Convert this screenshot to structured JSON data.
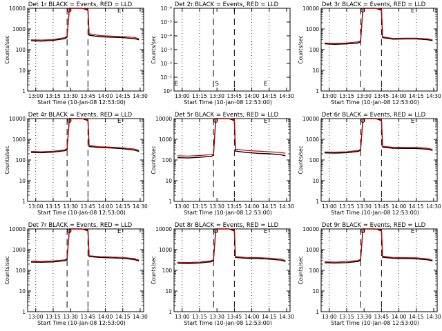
{
  "chart_data": [
    {
      "type": "line",
      "title": "Det 1r BLACK = Events, RED = LLD",
      "xlabel": "Start Time (10-Jan-08 12:53:00)",
      "ylabel": "Counts/sec",
      "x_ticks": [
        "13:00",
        "13:15",
        "13:30",
        "13:45",
        "14:00",
        "14:15",
        "14:30"
      ],
      "y_ticks": [
        "1",
        "10",
        "100",
        "1000",
        "10000"
      ],
      "ylim": [
        1,
        10000
      ],
      "yscale": "log",
      "markers": [
        "O",
        "E"
      ],
      "series": [
        {
          "name": "Events",
          "color": "#000000",
          "x": [
            "12:56",
            "13:05",
            "13:15",
            "13:25",
            "13:27",
            "13:29",
            "13:35",
            "13:40",
            "13:45",
            "13:46",
            "13:55",
            "14:05",
            "14:15",
            "14:25",
            "14:29"
          ],
          "y": [
            270,
            260,
            280,
            340,
            400,
            10000,
            10000,
            10000,
            8000,
            500,
            420,
            400,
            380,
            340,
            300
          ]
        },
        {
          "name": "LLD",
          "color": "#cc0000",
          "x": [
            "12:56",
            "13:05",
            "13:15",
            "13:25",
            "13:27",
            "13:29",
            "13:35",
            "13:40",
            "13:45",
            "13:46",
            "13:55",
            "14:05",
            "14:15",
            "14:25",
            "14:29"
          ],
          "y": [
            300,
            290,
            310,
            380,
            450,
            10000,
            10000,
            10000,
            9000,
            600,
            480,
            450,
            430,
            390,
            340
          ]
        }
      ]
    },
    {
      "type": "line",
      "title": "Det 2r BLACK = Events, RED = LLD",
      "xlabel": "Start Time (10-Jan-08 12:53:00)",
      "ylabel": "Counts/sec",
      "x_ticks": [
        "13:00",
        "13:15",
        "13:30",
        "13:45",
        "14:00",
        "14:15",
        "14:30"
      ],
      "y_ticks": [
        "10⁰",
        "10⁻¹",
        "10⁻²",
        "10⁻³",
        "10⁻⁴",
        "10⁻⁵",
        "10⁻⁶"
      ],
      "markers": [
        "E",
        "S",
        "E"
      ],
      "series": []
    },
    {
      "type": "line",
      "title": "Det 3r BLACK = Events, RED = LLD",
      "xlabel": "Start Time (10-Jan-08 12:53:00)",
      "ylabel": "Counts/sec",
      "x_ticks": [
        "13:00",
        "13:15",
        "13:30",
        "13:45",
        "14:00",
        "14:15",
        "14:30"
      ],
      "y_ticks": [
        "1",
        "10",
        "100",
        "1000",
        "10000"
      ],
      "ylim": [
        1,
        10000
      ],
      "yscale": "log",
      "markers": [
        "O",
        "E"
      ],
      "series": [
        {
          "name": "Events",
          "color": "#000000",
          "x": [
            "12:56",
            "13:05",
            "13:15",
            "13:25",
            "13:27",
            "13:29",
            "13:35",
            "13:40",
            "13:45",
            "13:46",
            "13:55",
            "14:05",
            "14:15",
            "14:25",
            "14:29"
          ],
          "y": [
            190,
            180,
            190,
            210,
            240,
            10000,
            10000,
            10000,
            8000,
            380,
            320,
            330,
            330,
            300,
            270
          ]
        },
        {
          "name": "LLD",
          "color": "#cc0000",
          "x": [
            "12:56",
            "13:05",
            "13:15",
            "13:25",
            "13:27",
            "13:29",
            "13:35",
            "13:40",
            "13:45",
            "13:46",
            "13:55",
            "14:05",
            "14:15",
            "14:25",
            "14:29"
          ],
          "y": [
            210,
            200,
            210,
            240,
            270,
            10000,
            10000,
            10000,
            9000,
            420,
            350,
            360,
            360,
            330,
            300
          ]
        }
      ]
    },
    {
      "type": "line",
      "title": "Det 4r BLACK = Events, RED = LLD",
      "xlabel": "Start Time (10-Jan-08 12:53:00)",
      "ylabel": "Counts/sec",
      "x_ticks": [
        "13:00",
        "13:15",
        "13:30",
        "13:45",
        "14:00",
        "14:15",
        "14:30"
      ],
      "y_ticks": [
        "1",
        "10",
        "100",
        "1000",
        "10000"
      ],
      "ylim": [
        1,
        10000
      ],
      "yscale": "log",
      "markers": [
        "O",
        "E"
      ],
      "series": [
        {
          "name": "Events",
          "color": "#000000",
          "x": [
            "12:56",
            "13:05",
            "13:15",
            "13:25",
            "13:27",
            "13:29",
            "13:35",
            "13:40",
            "13:45",
            "13:46",
            "13:55",
            "14:05",
            "14:15",
            "14:25",
            "14:29"
          ],
          "y": [
            230,
            225,
            240,
            280,
            320,
            10000,
            10000,
            10000,
            8000,
            450,
            400,
            380,
            350,
            300,
            260
          ]
        },
        {
          "name": "LLD",
          "color": "#cc0000",
          "x": [
            "12:56",
            "13:05",
            "13:15",
            "13:25",
            "13:27",
            "13:29",
            "13:35",
            "13:40",
            "13:45",
            "13:46",
            "13:55",
            "14:05",
            "14:15",
            "14:25",
            "14:29"
          ],
          "y": [
            260,
            250,
            265,
            310,
            360,
            10000,
            10000,
            10000,
            9000,
            500,
            440,
            420,
            390,
            340,
            290
          ]
        }
      ]
    },
    {
      "type": "line",
      "title": "Det 5r BLACK = Events, RED = LLD",
      "xlabel": "Start Time (10-Jan-08 12:53:00)",
      "ylabel": "Counts/sec",
      "x_ticks": [
        "13:00",
        "13:15",
        "13:30",
        "13:45",
        "14:00",
        "14:15",
        "14:30"
      ],
      "y_ticks": [
        "1",
        "10",
        "100",
        "1000",
        "10000"
      ],
      "ylim": [
        1,
        10000
      ],
      "yscale": "log",
      "markers": [
        "O",
        "E"
      ],
      "series": [
        {
          "name": "Events",
          "color": "#000000",
          "x": [
            "12:56",
            "13:05",
            "13:15",
            "13:25",
            "13:27",
            "13:29",
            "13:35",
            "13:40",
            "13:45",
            "13:46",
            "13:55",
            "14:05",
            "14:15",
            "14:25",
            "14:29"
          ],
          "y": [
            130,
            125,
            135,
            150,
            170,
            10000,
            10000,
            10000,
            8000,
            270,
            230,
            210,
            200,
            180,
            160
          ]
        },
        {
          "name": "LLD",
          "color": "#cc0000",
          "x": [
            "12:56",
            "13:05",
            "13:15",
            "13:25",
            "13:27",
            "13:29",
            "13:35",
            "13:40",
            "13:45",
            "13:46",
            "13:55",
            "14:05",
            "14:15",
            "14:25",
            "14:29"
          ],
          "y": [
            160,
            155,
            165,
            180,
            200,
            10000,
            10000,
            10000,
            9000,
            330,
            290,
            270,
            250,
            230,
            210
          ]
        }
      ]
    },
    {
      "type": "line",
      "title": "Det 6r BLACK = Events, RED = LLD",
      "xlabel": "Start Time (10-Jan-08 12:53:00)",
      "ylabel": "Counts/sec",
      "x_ticks": [
        "13:00",
        "13:15",
        "13:30",
        "13:45",
        "14:00",
        "14:15",
        "14:30"
      ],
      "y_ticks": [
        "1",
        "10",
        "100",
        "1000",
        "10000"
      ],
      "ylim": [
        1,
        10000
      ],
      "yscale": "log",
      "markers": [
        "O",
        "E"
      ],
      "series": [
        {
          "name": "Events",
          "color": "#000000",
          "x": [
            "12:56",
            "13:05",
            "13:15",
            "13:25",
            "13:27",
            "13:29",
            "13:35",
            "13:40",
            "13:45",
            "13:46",
            "13:55",
            "14:05",
            "14:15",
            "14:25",
            "14:29"
          ],
          "y": [
            220,
            215,
            225,
            260,
            300,
            10000,
            10000,
            10000,
            8000,
            420,
            370,
            360,
            360,
            330,
            290
          ]
        },
        {
          "name": "LLD",
          "color": "#cc0000",
          "x": [
            "12:56",
            "13:05",
            "13:15",
            "13:25",
            "13:27",
            "13:29",
            "13:35",
            "13:40",
            "13:45",
            "13:46",
            "13:55",
            "14:05",
            "14:15",
            "14:25",
            "14:29"
          ],
          "y": [
            245,
            240,
            250,
            290,
            330,
            10000,
            10000,
            10000,
            9000,
            460,
            410,
            400,
            400,
            370,
            320
          ]
        }
      ]
    },
    {
      "type": "line",
      "title": "Det 7r BLACK = Events, RED = LLD",
      "xlabel": "Start Time (10-Jan-08 12:53:00)",
      "ylabel": "Counts/sec",
      "x_ticks": [
        "13:00",
        "13:15",
        "13:30",
        "13:45",
        "14:00",
        "14:15",
        "14:30"
      ],
      "y_ticks": [
        "1",
        "10",
        "100",
        "1000",
        "10000"
      ],
      "ylim": [
        1,
        10000
      ],
      "yscale": "log",
      "markers": [
        "O",
        "E"
      ],
      "series": [
        {
          "name": "Events",
          "color": "#000000",
          "x": [
            "12:56",
            "13:05",
            "13:15",
            "13:25",
            "13:27",
            "13:29",
            "13:35",
            "13:40",
            "13:45",
            "13:46",
            "13:55",
            "14:05",
            "14:15",
            "14:25",
            "14:29"
          ],
          "y": [
            250,
            245,
            255,
            290,
            330,
            10000,
            10000,
            10000,
            8000,
            460,
            420,
            400,
            380,
            330,
            280
          ]
        },
        {
          "name": "LLD",
          "color": "#cc0000",
          "x": [
            "12:56",
            "13:05",
            "13:15",
            "13:25",
            "13:27",
            "13:29",
            "13:35",
            "13:40",
            "13:45",
            "13:46",
            "13:55",
            "14:05",
            "14:15",
            "14:25",
            "14:29"
          ],
          "y": [
            280,
            270,
            285,
            320,
            370,
            10000,
            10000,
            10000,
            9000,
            510,
            460,
            440,
            420,
            370,
            310
          ]
        }
      ]
    },
    {
      "type": "line",
      "title": "Det 8r BLACK = Events, RED = LLD",
      "xlabel": "Start Time (10-Jan-08 12:53:00)",
      "ylabel": "Counts/sec",
      "x_ticks": [
        "13:00",
        "13:15",
        "13:30",
        "13:45",
        "14:00",
        "14:15",
        "14:30"
      ],
      "y_ticks": [
        "1",
        "10",
        "100",
        "1000",
        "10000"
      ],
      "ylim": [
        1,
        10000
      ],
      "yscale": "log",
      "markers": [
        "O",
        "E"
      ],
      "series": [
        {
          "name": "Events",
          "color": "#000000",
          "x": [
            "12:56",
            "13:05",
            "13:15",
            "13:25",
            "13:27",
            "13:29",
            "13:35",
            "13:40",
            "13:45",
            "13:46",
            "13:55",
            "14:05",
            "14:15",
            "14:25",
            "14:29"
          ],
          "y": [
            220,
            215,
            225,
            260,
            300,
            10000,
            10000,
            10000,
            8000,
            420,
            380,
            370,
            350,
            310,
            270
          ]
        },
        {
          "name": "LLD",
          "color": "#cc0000",
          "x": [
            "12:56",
            "13:05",
            "13:15",
            "13:25",
            "13:27",
            "13:29",
            "13:35",
            "13:40",
            "13:45",
            "13:46",
            "13:55",
            "14:05",
            "14:15",
            "14:25",
            "14:29"
          ],
          "y": [
            245,
            240,
            250,
            290,
            330,
            10000,
            10000,
            10000,
            9000,
            460,
            420,
            410,
            390,
            350,
            300
          ]
        }
      ]
    },
    {
      "type": "line",
      "title": "Det 9r BLACK = Events, RED = LLD",
      "xlabel": "Start Time (10-Jan-08 12:53:00)",
      "ylabel": "Counts/sec",
      "x_ticks": [
        "13:00",
        "13:15",
        "13:30",
        "13:45",
        "14:00",
        "14:15",
        "14:30"
      ],
      "y_ticks": [
        "1",
        "10",
        "100",
        "1000",
        "10000"
      ],
      "ylim": [
        1,
        10000
      ],
      "yscale": "log",
      "markers": [
        "O",
        "E"
      ],
      "series": [
        {
          "name": "Events",
          "color": "#000000",
          "x": [
            "12:56",
            "13:05",
            "13:15",
            "13:25",
            "13:27",
            "13:29",
            "13:35",
            "13:40",
            "13:45",
            "13:46",
            "13:55",
            "14:05",
            "14:15",
            "14:25",
            "14:29"
          ],
          "y": [
            230,
            225,
            235,
            270,
            310,
            10000,
            10000,
            10000,
            8000,
            430,
            380,
            370,
            360,
            320,
            280
          ]
        },
        {
          "name": "LLD",
          "color": "#cc0000",
          "x": [
            "12:56",
            "13:05",
            "13:15",
            "13:25",
            "13:27",
            "13:29",
            "13:35",
            "13:40",
            "13:45",
            "13:46",
            "13:55",
            "14:05",
            "14:15",
            "14:25",
            "14:29"
          ],
          "y": [
            260,
            250,
            265,
            300,
            350,
            10000,
            10000,
            10000,
            9000,
            480,
            420,
            410,
            400,
            360,
            310
          ]
        }
      ]
    }
  ]
}
